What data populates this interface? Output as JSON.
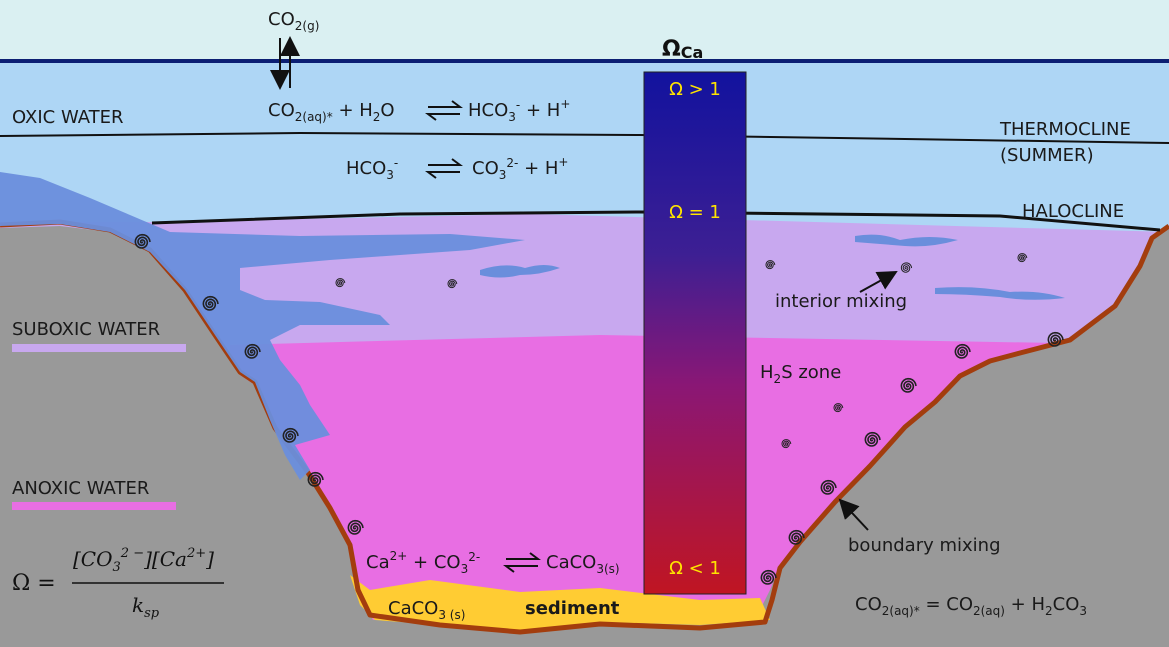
{
  "atmosphere": {
    "gas": "CO",
    "gas_sub_2": "2",
    "gas_sub_phase": "(g)"
  },
  "column": {
    "title_main": "Ω",
    "title_sub": "Ca",
    "levels": [
      {
        "op": "Ω > 1"
      },
      {
        "op": "Ω = 1"
      },
      {
        "op": "Ω < 1"
      }
    ],
    "color_top": "#12129e",
    "color_bottom": "#c01522"
  },
  "layers": {
    "oxic": "OXIC WATER",
    "thermocline_1": "THERMOCLINE",
    "thermocline_2": "(SUMMER)",
    "halocline": "HALOCLINE",
    "suboxic": "SUBOXIC WATER",
    "anoxic": "ANOXIC WATER",
    "h2s_zone": "S zone",
    "h2s_prefix": "H",
    "h2s_sub": "2"
  },
  "labels": {
    "interior_mixing": "interior mixing",
    "boundary_mixing": "boundary mixing",
    "sediment": "sediment"
  },
  "equations": {
    "eq1": {
      "a": "CO",
      "a_sub": "2(aq)*",
      "plus1": " + H",
      "b_sub": "2",
      "b_tail": "O",
      "c": "HCO",
      "c_sub": "3",
      "c_sup": "-",
      "tail": " + H",
      "tail_sup": "+"
    },
    "eq2": {
      "a": "HCO",
      "a_sub": "3",
      "a_sup": "-",
      "b": "CO",
      "b_sub": "3",
      "b_sup": "2-",
      "tail": " + H",
      "tail_sup": "+"
    },
    "eq3": {
      "a": "Ca",
      "a_sup": "2+",
      "plus": " + CO",
      "b_sub": "3",
      "b_sup": "2-",
      "c": "CaCO",
      "c_sub": "3(s)"
    },
    "sediment_formula": {
      "a": "CaCO",
      "a_sub": "3 (s)"
    },
    "eq4": {
      "a": "CO",
      "a_sub": "2(aq)*",
      "mid": " = CO",
      "b_sub": "2(aq)",
      "tail": " + H",
      "c_sub": "2",
      "c_mid": "CO",
      "c_sub2": "3"
    },
    "omega_def": {
      "lhs": "Ω =",
      "num_a": "[CO",
      "num_sub": "3",
      "num_sup": "2 −",
      "num_mid": "][Ca",
      "num_sup2": "2+",
      "num_end": "]",
      "den": "k",
      "den_sub": "sp"
    }
  },
  "colors": {
    "sky": "#daf0f2",
    "oxic": "#aed6f5",
    "suboxic": "#c8a8ef",
    "anoxic": "#e86ee3",
    "land": "#999999",
    "boundary": "#a33d0e",
    "intrusion": "#6a8edc",
    "sediment": "#ffcc33",
    "surface_line": "#0c1f73"
  }
}
